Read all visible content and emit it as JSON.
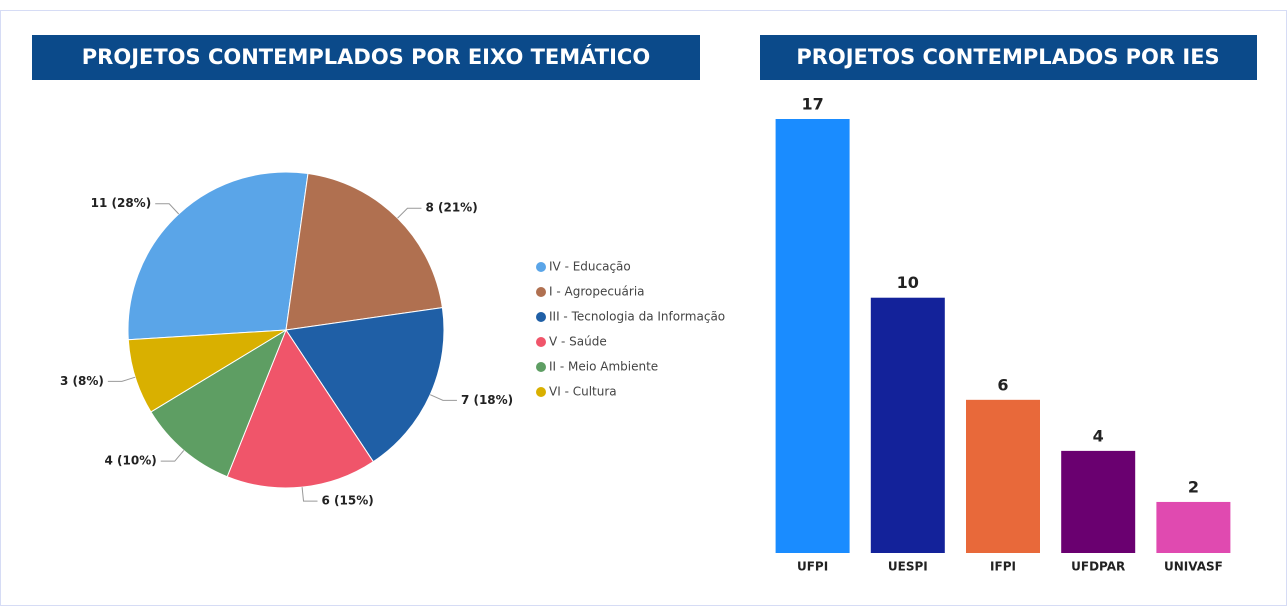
{
  "chart_data": [
    {
      "type": "pie",
      "title": "PROJETOS CONTEMPLADOS POR EIXO TEMÁTICO",
      "categories": [
        "IV - Educação",
        "I - Agropecuária",
        "III - Tecnologia da Informação",
        "V - Saúde",
        "II - Meio Ambiente",
        "VI - Cultura"
      ],
      "values": [
        11,
        8,
        7,
        6,
        4,
        3
      ],
      "value_labels": [
        "11 (28%)",
        "8 (21%)",
        "7 (18%)",
        "6 (15%)",
        "4 (10%)",
        "3 (8%)"
      ],
      "colors": [
        "#5aa5e8",
        "#b07050",
        "#1f5fa6",
        "#f0556a",
        "#5e9e63",
        "#d9b000"
      ],
      "legend": "right"
    },
    {
      "type": "bar",
      "title": "PROJETOS CONTEMPLADOS POR IES",
      "categories": [
        "UFPI",
        "UESPI",
        "IFPI",
        "UFDPAR",
        "UNIVASF"
      ],
      "values": [
        17,
        10,
        6,
        4,
        2
      ],
      "colors": [
        "#1a8cff",
        "#13229a",
        "#e8693a",
        "#6a0070",
        "#e04ab0"
      ]
    }
  ]
}
